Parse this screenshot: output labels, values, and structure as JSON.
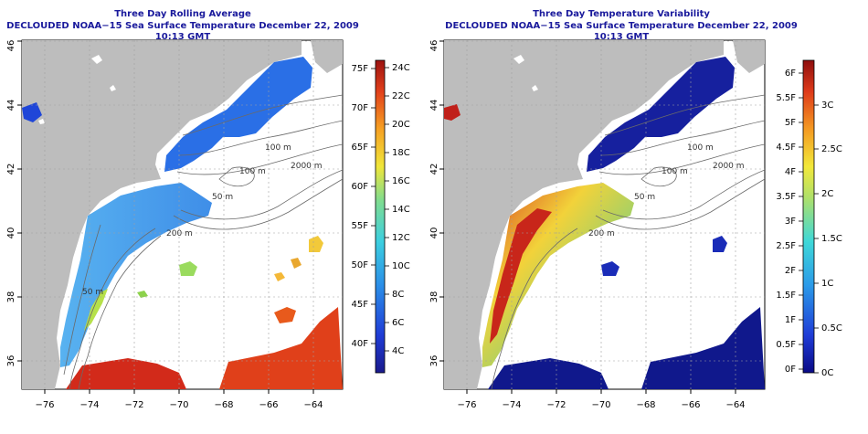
{
  "panels": {
    "left": {
      "title": "Three Day Rolling Average",
      "subtitle": "DECLOUDED NOAA−15 Sea Surface Temperature December 22, 2009 10:13 GMT",
      "colorbar": {
        "left_ticks": [
          "75F",
          "70F",
          "65F",
          "60F",
          "55F",
          "50F",
          "45F",
          "40F"
        ],
        "right_ticks": [
          "24C",
          "22C",
          "20C",
          "18C",
          "16C",
          "14C",
          "12C",
          "10C",
          "8C",
          "6C",
          "4C"
        ]
      }
    },
    "right": {
      "title": "Three Day Temperature Variability",
      "subtitle": "DECLOUDED NOAA−15 Sea Surface Temperature December 22, 2009 10:13 GMT",
      "colorbar": {
        "left_ticks": [
          "6F",
          "5.5F",
          "5F",
          "4.5F",
          "4F",
          "3.5F",
          "3F",
          "2.5F",
          "2F",
          "1.5F",
          "1F",
          "0.5F",
          "0F"
        ],
        "right_ticks": [
          "3C",
          "2.5C",
          "2C",
          "1.5C",
          "1C",
          "0.5C",
          "0C"
        ]
      }
    }
  },
  "axes": {
    "x_ticks": [
      "−76",
      "−74",
      "−72",
      "−70",
      "−68",
      "−66",
      "−64"
    ],
    "y_ticks": [
      "36",
      "38",
      "40",
      "42",
      "44",
      "46"
    ]
  },
  "contour_labels": [
    "100 m",
    "100 m",
    "2000 m",
    "50 m",
    "200 m",
    "50 m"
  ],
  "colors": {
    "title": "#1a1a9c",
    "land": "#bdbdbd",
    "water": "#ffffff",
    "contour": "#6a6a6a"
  }
}
